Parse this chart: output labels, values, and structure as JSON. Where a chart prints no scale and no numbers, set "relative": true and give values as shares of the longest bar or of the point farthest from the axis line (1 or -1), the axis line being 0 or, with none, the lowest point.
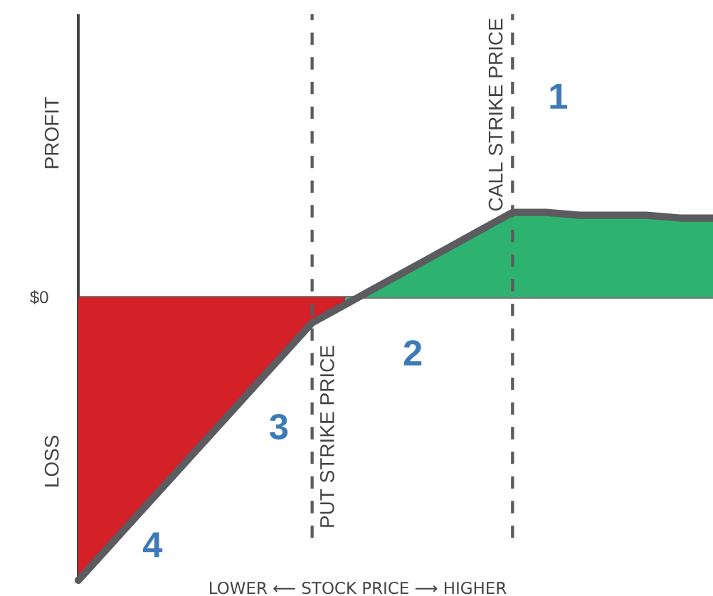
{
  "chart_data": {
    "type": "line",
    "relative": true,
    "xlabel": "LOWER ⟵ STOCK PRICE ⟶ HIGHER",
    "ylabel": "PROFIT",
    "categories": [
      null,
      null,
      null,
      null,
      null,
      null,
      null,
      null,
      null,
      null,
      null,
      null,
      null,
      null,
      null,
      null,
      null,
      null,
      null,
      null
    ],
    "series": [
      {
        "type": "area",
        "color": "#d42027",
        "values": [
          -1,
          -0.87,
          -0.74,
          -0.61,
          -0.48,
          -0.35,
          -0.22,
          -0.09,
          -0.025,
          null,
          null,
          null,
          null,
          null,
          null,
          null,
          null,
          null,
          null,
          null
        ]
      },
      {
        "type": "area",
        "color": "#2db36f",
        "values": [
          null,
          null,
          null,
          null,
          null,
          null,
          null,
          null,
          -0.025,
          0.04,
          0.105,
          0.17,
          0.235,
          0.3,
          0.3,
          0.29,
          0.29,
          0.29,
          0.28,
          0.28
        ]
      },
      {
        "color": "#5b5b60",
        "values": [
          -1,
          -0.87,
          -0.74,
          -0.61,
          -0.48,
          -0.35,
          -0.22,
          -0.09,
          -0.025,
          0.04,
          0.105,
          0.17,
          0.235,
          0.3,
          0.3,
          0.29,
          0.29,
          0.29,
          0.28,
          0.28
        ]
      }
    ],
    "annotations": [
      "$0",
      "LOSS",
      "1",
      "2",
      "3",
      "4",
      "PUT STRIKE PRICE",
      "CALL STRIKE PRICE"
    ]
  }
}
